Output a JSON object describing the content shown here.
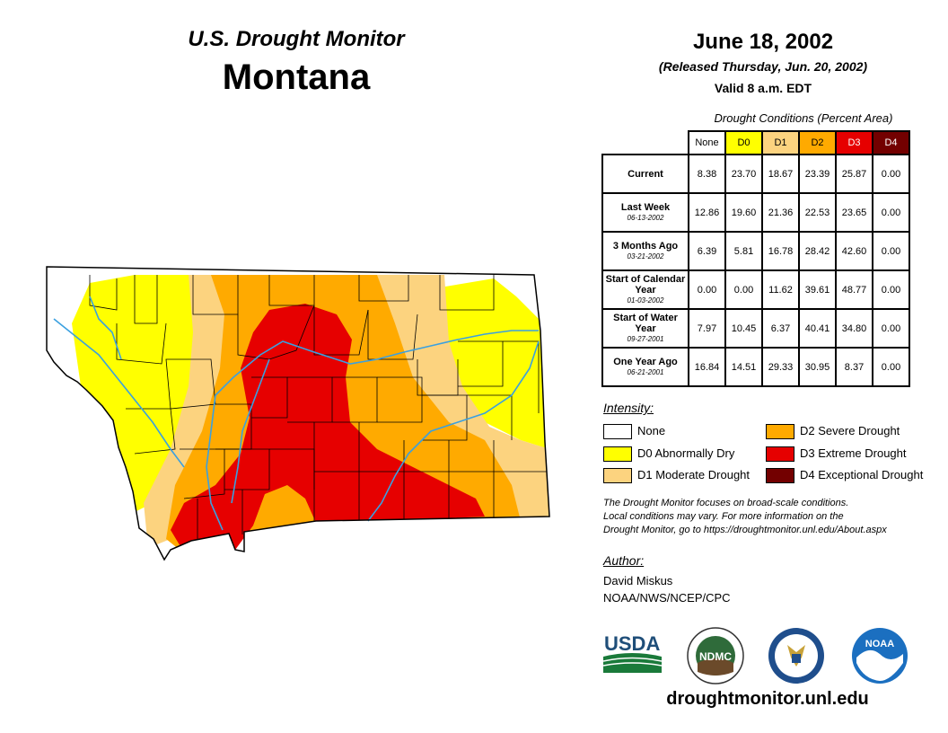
{
  "header": {
    "monitor_title": "U.S. Drought Monitor",
    "state": "Montana",
    "date": "June 18, 2002",
    "released": "(Released Thursday, Jun. 20, 2002)",
    "valid": "Valid 8 a.m. EDT"
  },
  "conditions": {
    "title": "Drought Conditions (Percent Area)",
    "columns": [
      "None",
      "D0",
      "D1",
      "D2",
      "D3",
      "D4"
    ],
    "column_colors": [
      "#ffffff",
      "#ffff00",
      "#fcd37f",
      "#ffaa00",
      "#e60000",
      "#730000"
    ],
    "rows": [
      {
        "label": "Current",
        "sub": "",
        "values": [
          "8.38",
          "23.70",
          "18.67",
          "23.39",
          "25.87",
          "0.00"
        ]
      },
      {
        "label": "Last Week",
        "sub": "06-13-2002",
        "values": [
          "12.86",
          "19.60",
          "21.36",
          "22.53",
          "23.65",
          "0.00"
        ]
      },
      {
        "label": "3 Months Ago",
        "sub": "03-21-2002",
        "values": [
          "6.39",
          "5.81",
          "16.78",
          "28.42",
          "42.60",
          "0.00"
        ]
      },
      {
        "label": "Start of Calendar Year",
        "sub": "01-03-2002",
        "values": [
          "0.00",
          "0.00",
          "11.62",
          "39.61",
          "48.77",
          "0.00"
        ]
      },
      {
        "label": "Start of Water Year",
        "sub": "09-27-2001",
        "values": [
          "7.97",
          "10.45",
          "6.37",
          "40.41",
          "34.80",
          "0.00"
        ]
      },
      {
        "label": "One Year Ago",
        "sub": "06-21-2001",
        "values": [
          "16.84",
          "14.51",
          "29.33",
          "30.95",
          "8.37",
          "0.00"
        ]
      }
    ]
  },
  "legend": {
    "title": "Intensity:",
    "items": [
      {
        "label": "None",
        "color": "#ffffff"
      },
      {
        "label": "D0 Abnormally Dry",
        "color": "#ffff00"
      },
      {
        "label": "D1 Moderate Drought",
        "color": "#fcd37f"
      },
      {
        "label": "D2 Severe Drought",
        "color": "#ffaa00"
      },
      {
        "label": "D3 Extreme Drought",
        "color": "#e60000"
      },
      {
        "label": "D4 Exceptional Drought",
        "color": "#730000"
      }
    ]
  },
  "note": {
    "line1": "The Drought Monitor focuses on broad-scale conditions.",
    "line2": "Local conditions may vary. For more information on the",
    "line3": "Drought Monitor, go to https://droughtmonitor.unl.edu/About.aspx"
  },
  "author": {
    "title": "Author:",
    "name": "David Miskus",
    "org": "NOAA/NWS/NCEP/CPC"
  },
  "logos": {
    "usda": "USDA",
    "ndmc": "NDMC",
    "noaa": "NOAA"
  },
  "footer_url": "droughtmonitor.unl.edu"
}
